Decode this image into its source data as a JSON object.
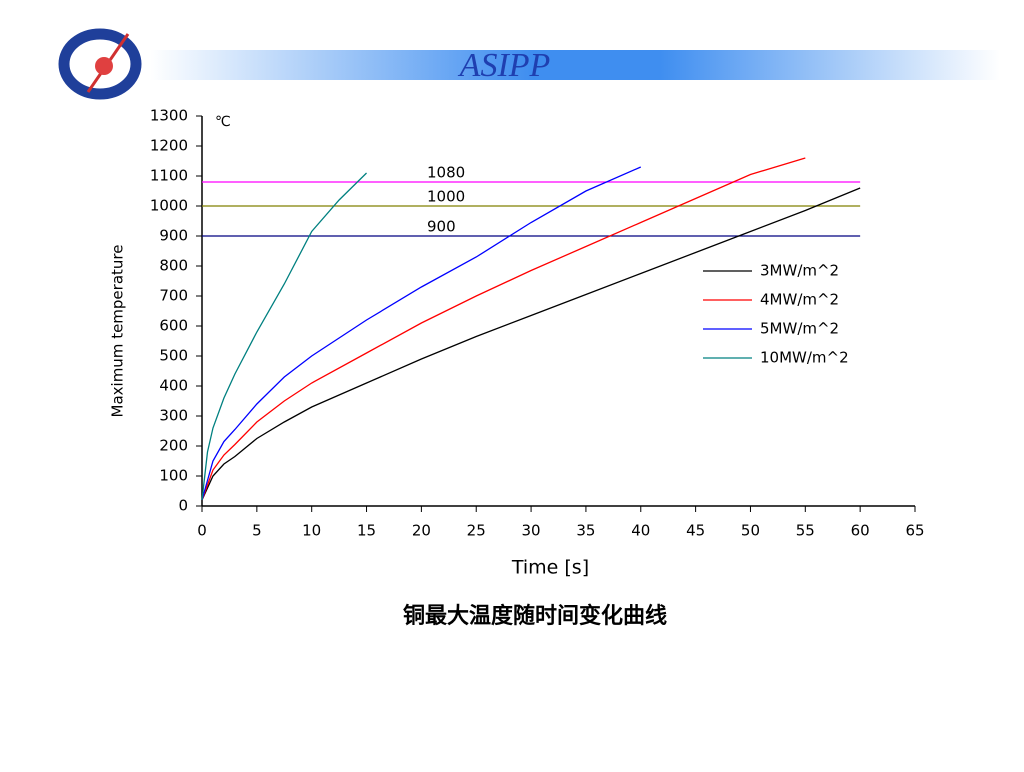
{
  "header": {
    "title": "ASIPP"
  },
  "chart_data": {
    "type": "line",
    "y_unit": "℃",
    "xlabel": "Time [s]",
    "ylabel": "Maximum temperature",
    "xlim": [
      0,
      65
    ],
    "xticks": [
      0,
      5,
      10,
      15,
      20,
      25,
      30,
      35,
      40,
      45,
      50,
      55,
      60,
      65
    ],
    "ylim": [
      0,
      1300
    ],
    "yticks": [
      0,
      100,
      200,
      300,
      400,
      500,
      600,
      700,
      800,
      900,
      1000,
      1100,
      1200,
      1300
    ],
    "legend": "right",
    "reference_lines": [
      {
        "value": 1080,
        "color": "#ff00ff"
      },
      {
        "value": 1000,
        "color": "#808000"
      },
      {
        "value": 900,
        "color": "#000080"
      }
    ],
    "series": [
      {
        "name": "3MW/m^2",
        "color": "#000000",
        "x": [
          0,
          1,
          2,
          3,
          5,
          7.5,
          10,
          15,
          20,
          25,
          30,
          35,
          40,
          45,
          50,
          55,
          60
        ],
        "values": [
          20,
          100,
          140,
          165,
          225,
          280,
          330,
          410,
          490,
          565,
          635,
          705,
          775,
          845,
          915,
          985,
          1060
        ]
      },
      {
        "name": "4MW/m^2",
        "color": "#ff0000",
        "x": [
          0,
          1,
          2,
          3,
          5,
          7.5,
          10,
          15,
          20,
          25,
          30,
          35,
          40,
          45,
          50,
          55
        ],
        "values": [
          20,
          120,
          170,
          205,
          280,
          350,
          410,
          510,
          610,
          700,
          785,
          865,
          945,
          1025,
          1105,
          1160
        ]
      },
      {
        "name": "5MW/m^2",
        "color": "#0000ff",
        "x": [
          0,
          1,
          2,
          3,
          5,
          7.5,
          10,
          15,
          20,
          25,
          30,
          35,
          40
        ],
        "values": [
          20,
          150,
          215,
          255,
          340,
          430,
          500,
          620,
          730,
          830,
          945,
          1050,
          1130
        ]
      },
      {
        "name": "10MW/m^2",
        "color": "#008080",
        "x": [
          0,
          0.5,
          1,
          2,
          3,
          5,
          7.5,
          10,
          12.5,
          15
        ],
        "values": [
          20,
          180,
          260,
          360,
          440,
          580,
          740,
          915,
          1020,
          1110
        ]
      }
    ]
  },
  "caption": "铜最大温度随时间变化曲线"
}
